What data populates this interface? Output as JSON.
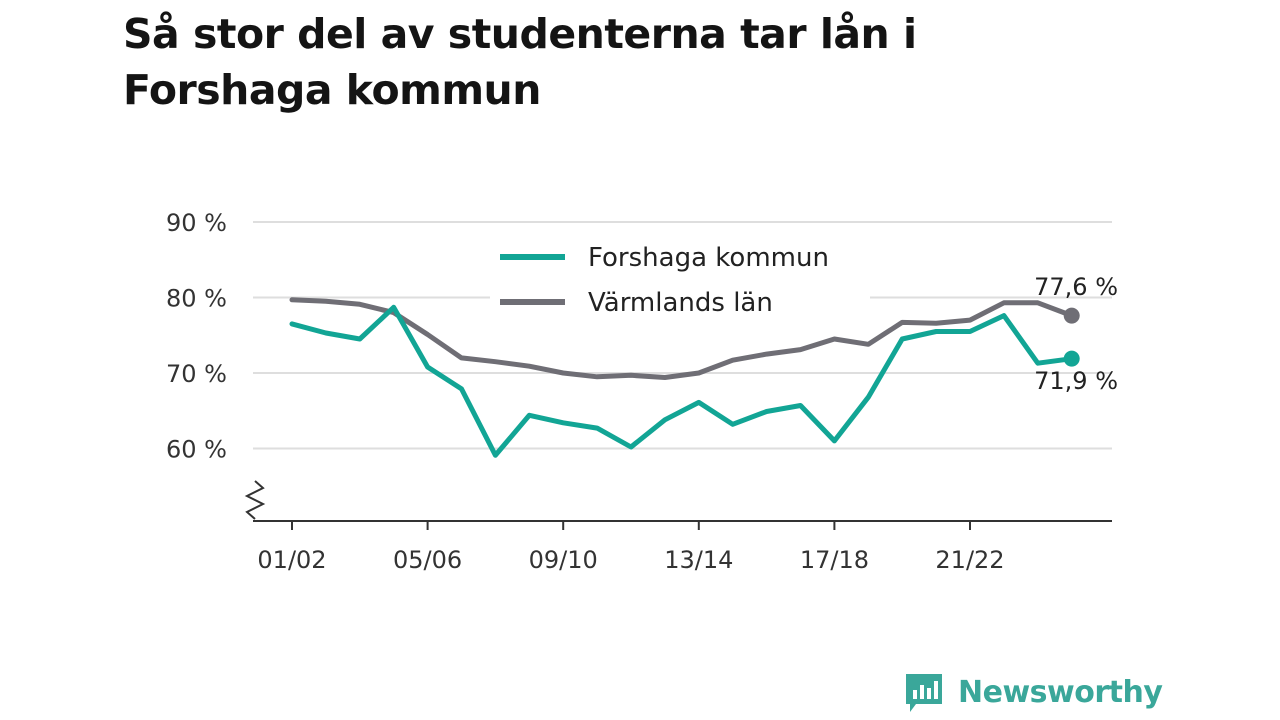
{
  "title": "Så stor del av studenterna tar lån i Forshaga kommun",
  "brand": {
    "name": "Newsworthy",
    "icon": "newsworthy-logo-icon",
    "color": "#3aa79a"
  },
  "chart_data": {
    "type": "line",
    "title": "Så stor del av studenterna tar lån i Forshaga kommun",
    "xlabel": "",
    "ylabel": "",
    "y_ticks": [
      {
        "value": 60,
        "label": "60 %"
      },
      {
        "value": 70,
        "label": "70 %"
      },
      {
        "value": 80,
        "label": "80 %"
      },
      {
        "value": 90,
        "label": "90 %"
      }
    ],
    "x_ticks": [
      {
        "index": 0,
        "label": "01/02"
      },
      {
        "index": 4,
        "label": "05/06"
      },
      {
        "index": 8,
        "label": "09/10"
      },
      {
        "index": 12,
        "label": "13/14"
      },
      {
        "index": 16,
        "label": "17/18"
      },
      {
        "index": 20,
        "label": "21/22"
      }
    ],
    "ylim": [
      50,
      90
    ],
    "y_axis_break": true,
    "grid": true,
    "legend_position": "top-center",
    "series": [
      {
        "name": "Forshaga kommun",
        "color": "#12a595",
        "values": [
          76.5,
          75.3,
          74.5,
          78.7,
          70.8,
          67.9,
          59.1,
          64.4,
          63.4,
          62.7,
          60.2,
          63.8,
          66.1,
          63.2,
          64.9,
          65.7,
          61.0,
          66.8,
          74.5,
          75.5,
          75.5,
          77.6,
          71.3,
          71.9
        ],
        "end_label": "71,9 %"
      },
      {
        "name": "Värmlands län",
        "color": "#6f6e75",
        "values": [
          79.7,
          79.5,
          79.1,
          78.0,
          75.1,
          72.0,
          71.5,
          70.9,
          70.0,
          69.5,
          69.7,
          69.4,
          70.0,
          71.7,
          72.5,
          73.1,
          74.5,
          73.8,
          76.7,
          76.6,
          77.0,
          79.3,
          79.3,
          77.6
        ],
        "end_label": "77,6 %"
      }
    ]
  }
}
